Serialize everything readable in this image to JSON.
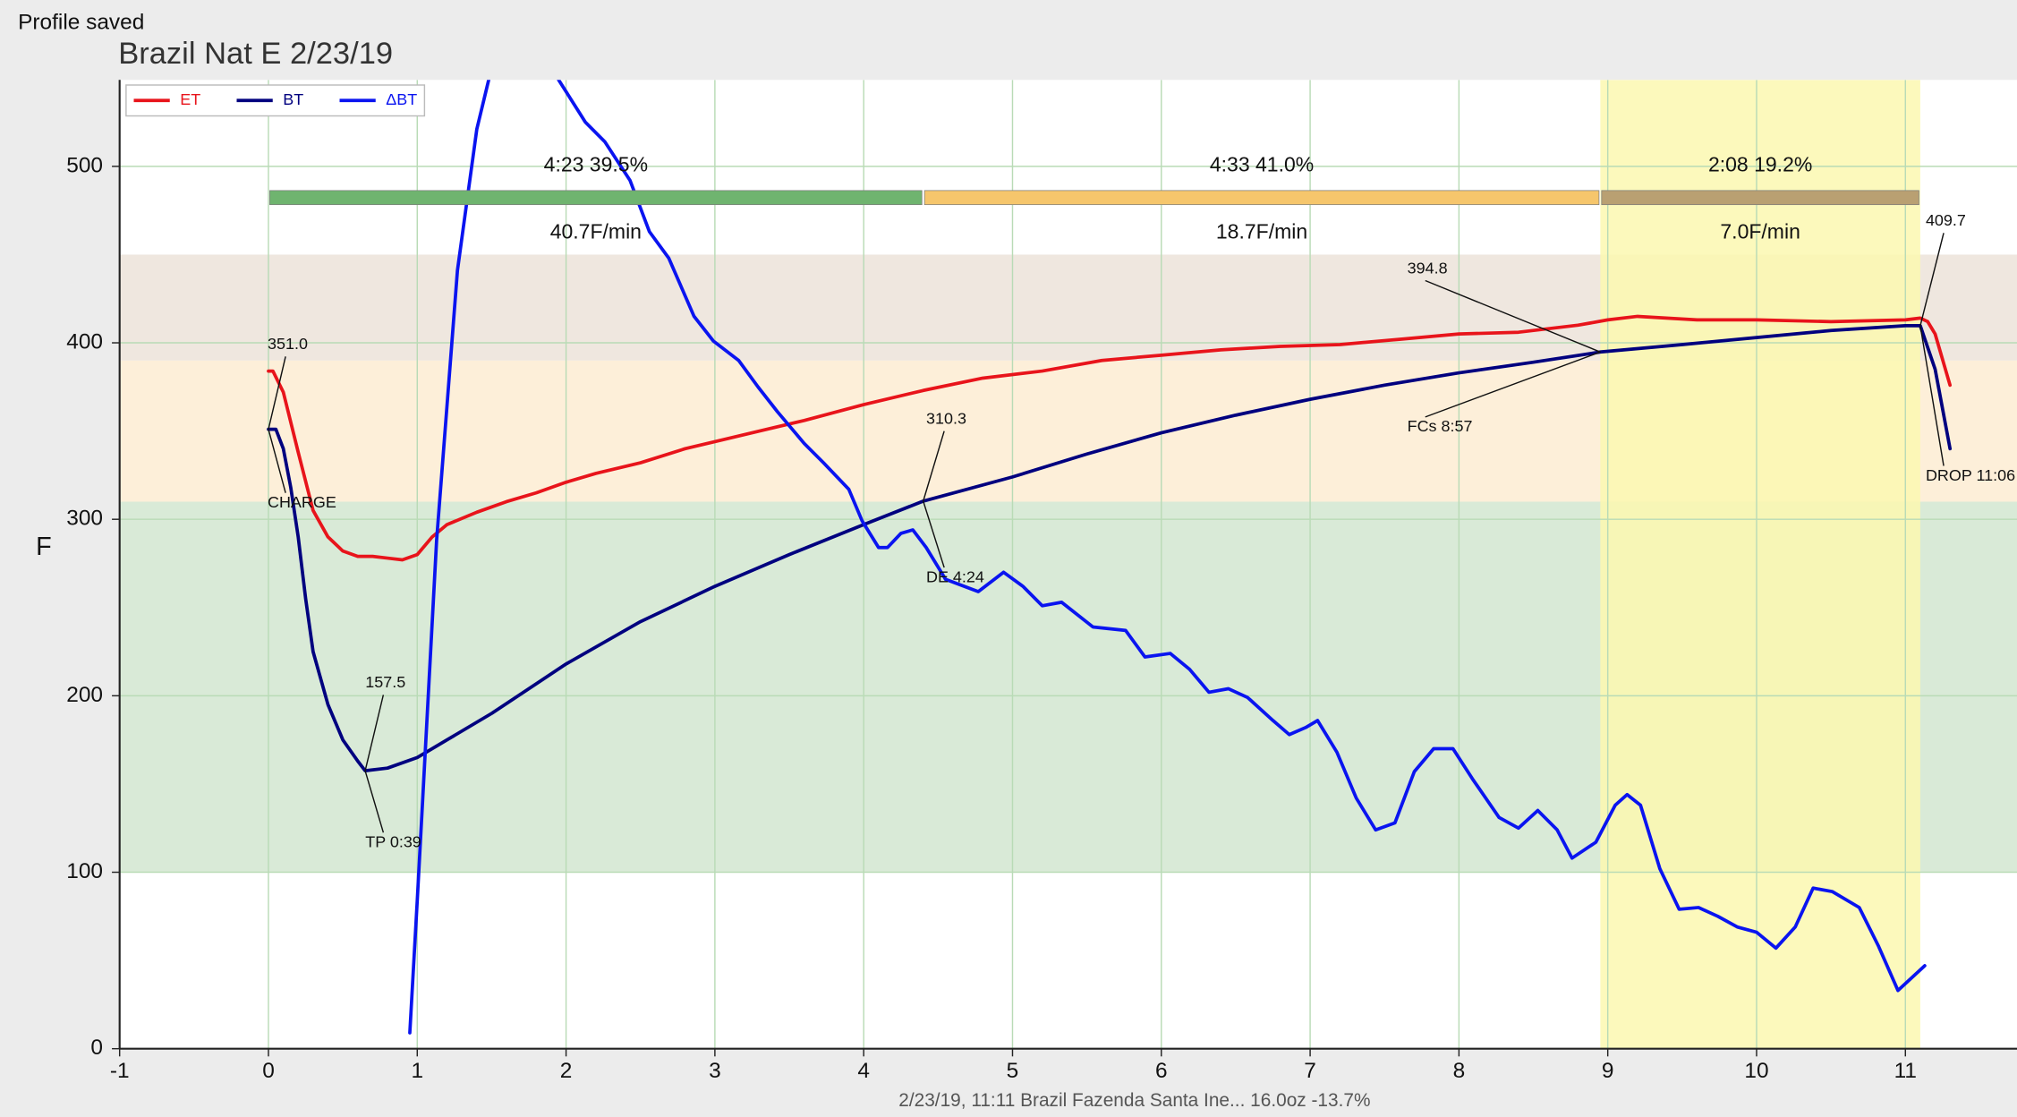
{
  "status": "Profile saved",
  "chart_data": {
    "type": "line",
    "title": "Brazil Nat E 2/23/19",
    "footer": "2/23/19, 11:11   Brazil Fazenda Santa Ine...   16.0oz   -13.7%",
    "y_label": "F",
    "xlim": [
      -1,
      11.75
    ],
    "ylim": [
      0,
      549
    ],
    "xticks": [
      -1,
      0,
      1,
      2,
      3,
      4,
      5,
      6,
      7,
      8,
      9,
      10,
      11
    ],
    "yticks": [
      0,
      100,
      200,
      300,
      400,
      500
    ],
    "grid": true,
    "legend": "upper left",
    "bands": [
      {
        "range": [
          100,
          310
        ],
        "color": "#d9ead7"
      },
      {
        "range": [
          310,
          390
        ],
        "color": "#fdefd9"
      },
      {
        "range": [
          390,
          450
        ],
        "color": "#efe7df"
      }
    ],
    "xband": {
      "range": [
        8.95,
        11.1
      ],
      "color": "#fbf8b0"
    },
    "phases": [
      {
        "label": "4:23  39.5%",
        "rate": "40.7F/min",
        "start": 0,
        "end": 4.4,
        "color": "#6fb46f"
      },
      {
        "label": "4:33  41.0%",
        "rate": "18.7F/min",
        "start": 4.4,
        "end": 8.95,
        "color": "#f6c66c"
      },
      {
        "label": "2:08  19.2%",
        "rate": "7.0F/min",
        "start": 8.95,
        "end": 11.1,
        "color": "#b9a072"
      }
    ],
    "series": [
      {
        "name": "ET",
        "color": "#e8141b",
        "x": [
          0,
          0.03,
          0.1,
          0.2,
          0.3,
          0.4,
          0.5,
          0.6,
          0.7,
          0.8,
          0.9,
          1.0,
          1.1,
          1.2,
          1.4,
          1.6,
          1.8,
          2.0,
          2.2,
          2.5,
          2.8,
          3.0,
          3.3,
          3.6,
          4.0,
          4.4,
          4.8,
          5.2,
          5.6,
          6.0,
          6.4,
          6.8,
          7.2,
          7.6,
          8.0,
          8.4,
          8.8,
          9.0,
          9.2,
          9.6,
          10.0,
          10.5,
          11.0,
          11.1,
          11.15,
          11.2,
          11.3
        ],
        "values": [
          384,
          384,
          372,
          338,
          305,
          290,
          282,
          279,
          279,
          278,
          277,
          280,
          290,
          297,
          304,
          310,
          315,
          321,
          326,
          332,
          340,
          344,
          350,
          356,
          365,
          373,
          380,
          384,
          390,
          393,
          396,
          398,
          399,
          402,
          405,
          406,
          410,
          413,
          415,
          413,
          413,
          412,
          413,
          414,
          412,
          405,
          376
        ]
      },
      {
        "name": "BT",
        "color": "#00007f",
        "x": [
          0,
          0.05,
          0.1,
          0.15,
          0.2,
          0.25,
          0.3,
          0.4,
          0.5,
          0.6,
          0.65,
          0.8,
          1.0,
          1.2,
          1.5,
          2.0,
          2.5,
          3.0,
          3.5,
          4.0,
          4.4,
          5.0,
          5.5,
          6.0,
          6.5,
          7.0,
          7.5,
          8.0,
          8.5,
          8.95,
          9.5,
          10.0,
          10.5,
          11.0,
          11.1,
          11.2,
          11.3
        ],
        "values": [
          351,
          351,
          340,
          318,
          290,
          255,
          225,
          195,
          175,
          163,
          157.5,
          159,
          165,
          175,
          190,
          218,
          242,
          262,
          280,
          297,
          310.3,
          324,
          337,
          349,
          359,
          368,
          376,
          383,
          389,
          394.8,
          399,
          403,
          407,
          409.7,
          409.7,
          385,
          340
        ]
      },
      {
        "name": "ΔBT",
        "color": "#0a14f0",
        "x": [
          0.95,
          1.0,
          1.13,
          1.27,
          1.4,
          1.48,
          1.7,
          1.95,
          2.13,
          2.26,
          2.43,
          2.56,
          2.69,
          2.86,
          2.99,
          3.16,
          3.29,
          3.42,
          3.6,
          3.73,
          3.9,
          3.99,
          4.1,
          4.16,
          4.25,
          4.33,
          4.42,
          4.55,
          4.77,
          4.94,
          5.07,
          5.2,
          5.33,
          5.54,
          5.76,
          5.89,
          6.06,
          6.19,
          6.32,
          6.45,
          6.58,
          6.75,
          6.86,
          6.97,
          7.05,
          7.18,
          7.31,
          7.44,
          7.57,
          7.7,
          7.83,
          7.96,
          8.09,
          8.27,
          8.4,
          8.53,
          8.66,
          8.76,
          8.92,
          9.05,
          9.13,
          9.22,
          9.35,
          9.48,
          9.61,
          9.74,
          9.87,
          10.0,
          10.13,
          10.26,
          10.38,
          10.51,
          10.69,
          10.82,
          10.95,
          11.13
        ],
        "values": [
          9,
          84,
          288,
          441,
          521,
          549,
          null,
          549,
          525,
          514,
          492,
          463,
          448,
          415,
          401,
          390,
          375,
          361,
          343,
          332,
          317,
          299,
          284,
          284,
          292,
          294,
          284,
          266,
          259,
          270,
          262,
          251,
          253,
          239,
          237,
          222,
          224,
          215,
          202,
          204,
          199,
          186,
          178,
          182,
          186,
          168,
          142,
          124,
          128,
          157,
          170,
          170,
          153,
          131,
          125,
          135,
          124,
          108,
          117,
          138,
          144,
          138,
          102,
          79,
          80,
          75,
          69,
          66,
          57,
          69,
          91,
          89,
          80,
          58,
          33,
          47
        ]
      }
    ],
    "events": [
      {
        "name": "CHARGE",
        "time": 0,
        "value": 351,
        "value_label": "351.0"
      },
      {
        "name": "TP 0:39",
        "time": 0.65,
        "value": 157.5,
        "value_label": "157.5"
      },
      {
        "name": "DE 4:24",
        "time": 4.4,
        "value": 310.3,
        "value_label": "310.3"
      },
      {
        "name": "FCs 8:57",
        "time": 8.95,
        "value": 394.8,
        "value_label": "394.8"
      },
      {
        "name": "DROP 11:06",
        "time": 11.1,
        "value": 409.7,
        "value_label": "409.7"
      }
    ]
  }
}
